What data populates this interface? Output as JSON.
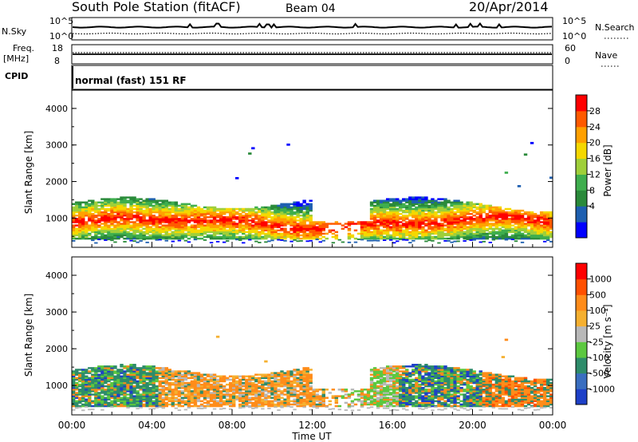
{
  "header": {
    "station": "South Pole Station (fitACF)",
    "beam": "Beam 04",
    "date": "20/Apr/2014"
  },
  "top_panels": {
    "nsky_label": "N.Sky",
    "nsky_ticks": [
      "10^5",
      "10^0"
    ],
    "nsearch_label": "N.Search",
    "nsearch_ticks": [
      "10^5",
      "10^0"
    ],
    "freq_label": "Freq.",
    "freq_unit": "[MHz]",
    "freq_ticks": [
      "18",
      "8"
    ],
    "nave_label": "Nave",
    "nave_ticks": [
      "60",
      "0"
    ],
    "cpid_label": "CPID",
    "cpid_text": "normal (fast) 151 RF"
  },
  "chart_data": [
    {
      "type": "heatmap",
      "name": "power-panel",
      "ylabel": "Slant Range [km]",
      "y_ticks": [
        "4000",
        "3000",
        "2000",
        "1000"
      ],
      "ylim": [
        200,
        4500
      ],
      "colorbar_label": "Power [dB]",
      "colorbar_ticks": [
        "28",
        "24",
        "20",
        "16",
        "12",
        "8",
        "4"
      ],
      "colorbar_colors": [
        "#0000ff",
        "#1e5fb0",
        "#2a8a3a",
        "#3fae4e",
        "#9fcf3a",
        "#f5d800",
        "#ffa000",
        "#ff5a00",
        "#ff0000"
      ]
    },
    {
      "type": "heatmap",
      "name": "velocity-panel",
      "ylabel": "Slant Range [km]",
      "y_ticks": [
        "4000",
        "3000",
        "2000",
        "1000"
      ],
      "ylim": [
        200,
        4500
      ],
      "colorbar_label": "Velocity [m s⁻¹]",
      "colorbar_ticks": [
        "1000",
        "500",
        "100",
        "25",
        "-25",
        "-100",
        "-500",
        "-1000"
      ],
      "colorbar_colors": [
        "#1e40c8",
        "#3a6ec0",
        "#2e8c6a",
        "#5cc840",
        "#b8b8b8",
        "#f5b030",
        "#ff8c1a",
        "#ff5000",
        "#ff0000"
      ]
    }
  ],
  "x_axis": {
    "label": "Time UT",
    "ticks": [
      "00:00",
      "04:00",
      "08:00",
      "12:00",
      "16:00",
      "20:00",
      "00:00"
    ]
  }
}
